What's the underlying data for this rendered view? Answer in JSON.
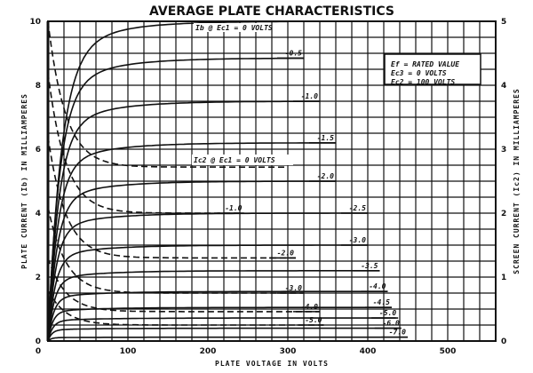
{
  "chart_data": {
    "type": "line",
    "title": "AVERAGE PLATE CHARACTERISTICS",
    "xlabel": "PLATE VOLTAGE IN VOLTS",
    "ylabel": "PLATE CURRENT (Ib) IN MILLIAMPERES",
    "y2label": "SCREEN CURRENT (Ic2) IN MILLIAMPERES",
    "xlim": [
      0,
      560
    ],
    "ylim": [
      0,
      10
    ],
    "y2lim": [
      0,
      5
    ],
    "xticks": [
      0,
      100,
      200,
      300,
      400,
      500
    ],
    "yticks": [
      0,
      2,
      4,
      6,
      8,
      10
    ],
    "y2ticks": [
      0,
      1,
      2,
      3,
      4,
      5
    ],
    "grid": true,
    "grid_step_x": 20,
    "grid_step_y": 0.5,
    "conditions": [
      "Ef = RATED VALUE",
      "Ec3 = 0 VOLTS",
      "Ec2 = 100 VOLTS"
    ],
    "plate_curves_label": "Ib @ Ec1 = 0 VOLTS",
    "screen_curves_label": "Ic2 @ Ec1 = 0 VOLTS",
    "series": [
      {
        "name": "Ib Ec1=0",
        "style": "solid",
        "axis": "left",
        "label": "",
        "knee": 16,
        "final": 10.0,
        "xend": 300
      },
      {
        "name": "Ib Ec1=-0.5",
        "style": "solid",
        "axis": "left",
        "label": "-0.5",
        "knee": 14,
        "final": 8.85,
        "xend": 320
      },
      {
        "name": "Ib Ec1=-1.0",
        "style": "solid",
        "axis": "left",
        "label": "-1.0",
        "knee": 13,
        "final": 7.5,
        "xend": 340
      },
      {
        "name": "Ib Ec1=-1.5",
        "style": "solid",
        "axis": "left",
        "label": "-1.5",
        "knee": 12,
        "final": 6.2,
        "xend": 360
      },
      {
        "name": "Ib Ec1=-2.0",
        "style": "solid",
        "axis": "left",
        "label": "-2.0",
        "knee": 11,
        "final": 5.0,
        "xend": 360
      },
      {
        "name": "Ib Ec1=-2.5",
        "style": "solid",
        "axis": "left",
        "label": "-2.5",
        "knee": 10,
        "final": 4.0,
        "xend": 400
      },
      {
        "name": "Ib Ec1=-3.0",
        "style": "solid",
        "axis": "left",
        "label": "-3.0",
        "knee": 9,
        "final": 3.0,
        "xend": 400
      },
      {
        "name": "Ib Ec1=-3.5",
        "style": "solid",
        "axis": "left",
        "label": "-3.5",
        "knee": 8,
        "final": 2.2,
        "xend": 415
      },
      {
        "name": "Ib Ec1=-4.0",
        "style": "solid",
        "axis": "left",
        "label": "-4.0",
        "knee": 7,
        "final": 1.55,
        "xend": 425
      },
      {
        "name": "Ib Ec1=-4.5",
        "style": "solid",
        "axis": "left",
        "label": "-4.5",
        "knee": 6,
        "final": 1.05,
        "xend": 430
      },
      {
        "name": "Ib Ec1=-5.0",
        "style": "solid",
        "axis": "left",
        "label": "-5.0",
        "knee": 6,
        "final": 0.72,
        "xend": 438
      },
      {
        "name": "Ib Ec1=-6.0",
        "style": "solid",
        "axis": "left",
        "label": "-6.0",
        "knee": 5,
        "final": 0.4,
        "xend": 442
      },
      {
        "name": "Ib Ec1=-7.0",
        "style": "solid",
        "axis": "left",
        "label": "-7.0",
        "knee": 4,
        "final": 0.12,
        "xend": 450
      },
      {
        "name": "Ic2 Ec1=0",
        "style": "dashed",
        "axis": "right",
        "label": "",
        "start": 5.0,
        "final": 2.72,
        "xend": 300
      },
      {
        "name": "Ic2 Ec1=-1.0",
        "style": "dashed",
        "axis": "right",
        "label": "-1.0",
        "start": 4.2,
        "final": 2.0,
        "xend": 245
      },
      {
        "name": "Ic2 Ec1=-2.0",
        "style": "dashed",
        "axis": "right",
        "label": "-2.0",
        "start": 3.2,
        "final": 1.3,
        "xend": 310
      },
      {
        "name": "Ic2 Ec1=-3.0",
        "style": "dashed",
        "axis": "right",
        "label": "-3.0",
        "start": 2.1,
        "final": 0.75,
        "xend": 320
      },
      {
        "name": "Ic2 Ec1=-4.0",
        "style": "dashed",
        "axis": "right",
        "label": "-4.0",
        "start": 1.3,
        "final": 0.46,
        "xend": 340
      },
      {
        "name": "Ic2 Ec1=-5.0",
        "style": "dashed",
        "axis": "right",
        "label": "-5.0",
        "start": 0.8,
        "final": 0.25,
        "xend": 345
      }
    ]
  }
}
